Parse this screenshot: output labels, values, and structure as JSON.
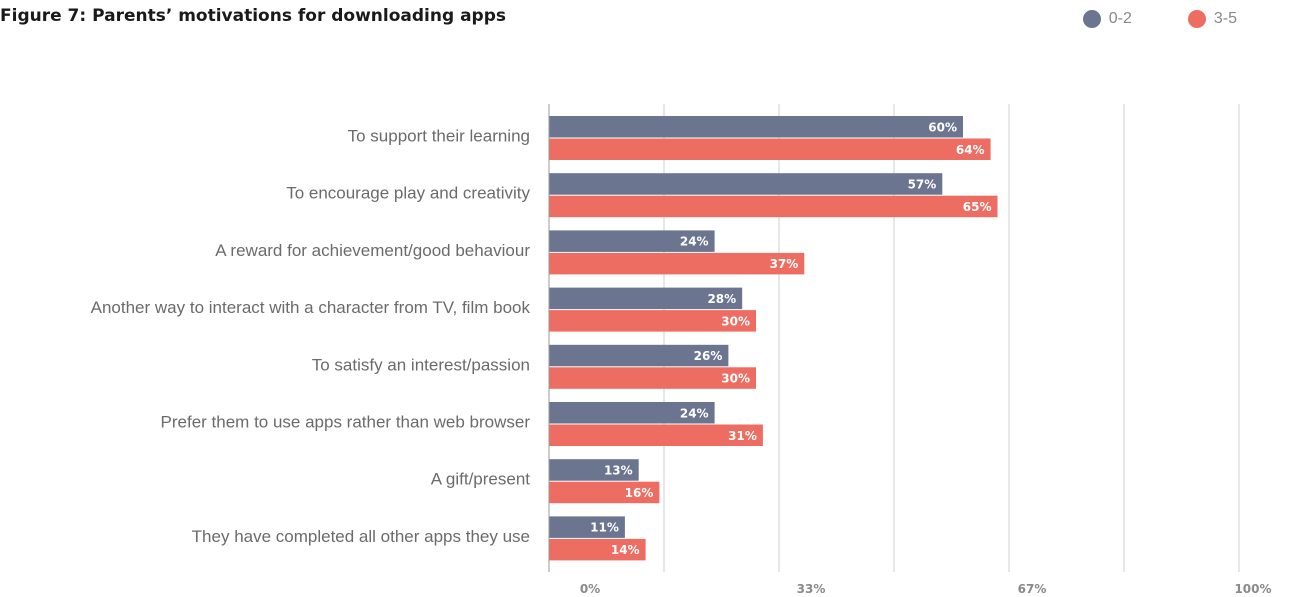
{
  "chart_data": {
    "type": "bar",
    "orientation": "horizontal",
    "title": "Figure 7: Parents’ motivations for downloading apps",
    "categories": [
      "To support their learning",
      "To encourage play and creativity",
      "A reward for achievement/good behaviour",
      "Another way to interact with a character from TV, film book",
      "To satisfy an interest/passion",
      "Prefer them to use apps rather than web browser",
      "A gift/present",
      "They have completed all other apps they use"
    ],
    "series": [
      {
        "name": "0-2",
        "color": "#6b7590",
        "values": [
          60,
          57,
          24,
          28,
          26,
          24,
          13,
          11
        ],
        "labels": [
          "60%",
          "57%",
          "24%",
          "28%",
          "26%",
          "24%",
          "13%",
          "11%"
        ]
      },
      {
        "name": "3-5",
        "color": "#ee6d62",
        "values": [
          64,
          65,
          37,
          30,
          30,
          31,
          16,
          14
        ],
        "labels": [
          "64%",
          "65%",
          "37%",
          "30%",
          "30%",
          "31%",
          "16%",
          "14%"
        ]
      }
    ],
    "xlim": [
      0,
      100
    ],
    "ticks": [
      {
        "value": 0,
        "label": "0%"
      },
      {
        "value": 33,
        "label": "33%"
      },
      {
        "value": 67,
        "label": "67%"
      },
      {
        "value": 100,
        "label": "100%"
      }
    ],
    "grid": true,
    "legend_position": "top-right"
  }
}
